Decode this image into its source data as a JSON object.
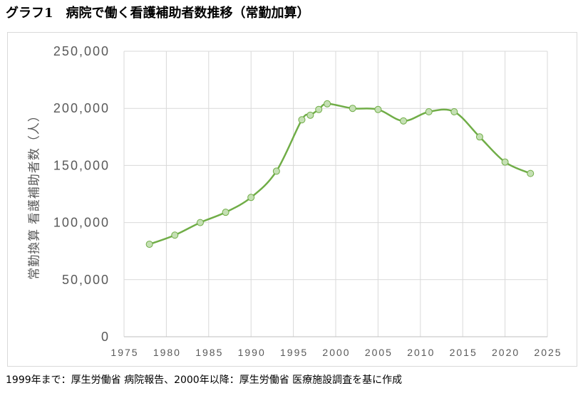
{
  "chart_data": {
    "type": "line",
    "title": "グラフ1　病院で働く看護補助者数推移（常勤加算）",
    "xlabel": "",
    "ylabel": "常勤換算 看護補助者数（人）",
    "x": [
      1978,
      1981,
      1984,
      1987,
      1990,
      1993,
      1996,
      1997,
      1998,
      1999,
      2002,
      2005,
      2008,
      2011,
      2014,
      2017,
      2020,
      2023
    ],
    "series": [
      {
        "values": [
          81000,
          89000,
          100000,
          109000,
          122000,
          145000,
          190000,
          194000,
          199000,
          204000,
          200000,
          199000,
          189000,
          197000,
          197000,
          175000,
          153000,
          143000
        ],
        "color": "#70ad47",
        "marker_fill": "#c5e0b4",
        "smooth": true
      }
    ],
    "xlim": [
      1975,
      2025
    ],
    "ylim": [
      0,
      250000
    ],
    "x_tick_labels": [
      "1975",
      "1980",
      "1985",
      "1990",
      "1995",
      "2000",
      "2005",
      "2010",
      "2015",
      "2020",
      "2025"
    ],
    "y_tick_labels": [
      "0",
      "50,000",
      "100,000",
      "150,000",
      "200,000",
      "250,000"
    ],
    "grid": true,
    "legend": false
  },
  "source_note": "1999年まで：厚生労働省 病院報告、2000年以降：厚生労働省 医療施設調査を基に作成",
  "colors": {
    "gridline": "#d9d9d9",
    "axis_line": "#bfbfbf",
    "axis_text": "#595959",
    "frame_border": "#d9d9d9"
  }
}
